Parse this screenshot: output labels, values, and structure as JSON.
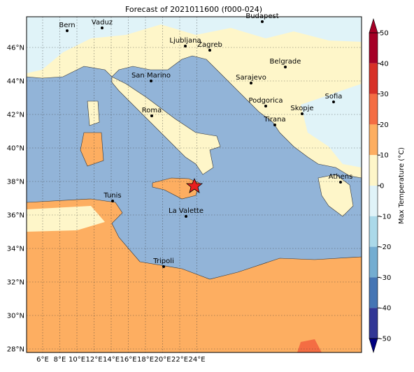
{
  "title": "Forecast of 2021011600 (f000-024)",
  "map": {
    "lon_ticks": [
      "6°E",
      "8°E",
      "10°E",
      "12°E",
      "14°E",
      "16°E",
      "18°E",
      "20°E",
      "22°E",
      "24°E"
    ],
    "lat_ticks": [
      "46°N",
      "44°N",
      "42°N",
      "40°N",
      "38°N",
      "36°N",
      "34°N",
      "32°N",
      "30°N",
      "28°N"
    ],
    "cities": [
      "Bern",
      "Vaduz",
      "Budapest",
      "Ljubljana",
      "Zagreb",
      "Belgrade",
      "San Marino",
      "Sarajevo",
      "Sofia",
      "Podgorica",
      "Skopje",
      "Roma",
      "Tirana",
      "Athens",
      "Tunis",
      "La Valette",
      "Tripoli"
    ]
  },
  "colorbar": {
    "label": "Max Temperature (°C)",
    "ticks": [
      50,
      40,
      30,
      20,
      10,
      0,
      -10,
      -20,
      -30,
      -40,
      -50
    ],
    "colors": [
      "#a50026",
      "#d73027",
      "#f46d43",
      "#fdae61",
      "#fef6c9",
      "#e0f3f8",
      "#abd9e9",
      "#74add1",
      "#4575b4",
      "#313695"
    ]
  }
}
